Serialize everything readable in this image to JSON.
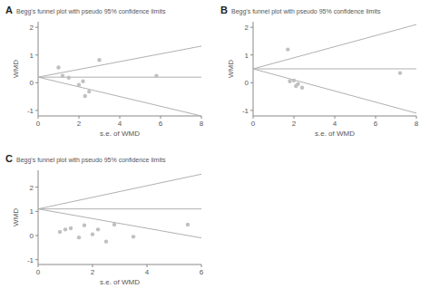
{
  "chart_data": [
    {
      "type": "scatter",
      "title": "Begg's funnel plot with pseudo 95% confidence limits",
      "annotations": [
        "A"
      ],
      "xlabel": "s.e. of WMD",
      "ylabel": "WMD",
      "xlim": [
        0,
        8
      ],
      "ylim": [
        -1.2,
        2.2
      ],
      "xticks": [
        0,
        2,
        4,
        6,
        8
      ],
      "yticks": [
        -1,
        0,
        1,
        2
      ],
      "series": [
        {
          "type": "line",
          "color": "#b0b0b0",
          "x": [
            0,
            8
          ],
          "values": [
            0.2,
            1.32
          ]
        },
        {
          "type": "line",
          "color": "#b0b0b0",
          "x": [
            0,
            8
          ],
          "values": [
            0.2,
            -1.2
          ]
        },
        {
          "type": "line",
          "color": "#b0b0b0",
          "x": [
            0,
            8
          ],
          "values": [
            0.2,
            0.2
          ]
        },
        {
          "type": "scatter",
          "color": "#c0c0c0",
          "x": [
            1.0,
            1.2,
            1.5,
            2.0,
            2.2,
            2.5,
            2.3,
            3.0,
            5.8
          ],
          "values": [
            0.55,
            0.25,
            0.18,
            -0.08,
            0.05,
            -0.32,
            -0.48,
            0.82,
            0.25
          ]
        }
      ]
    },
    {
      "type": "scatter",
      "title": "Begg's funnel plot with pseudo 95% confidence limits",
      "annotations": [
        "B"
      ],
      "xlabel": "s.e. of WMD",
      "ylabel": "WMD",
      "xlim": [
        0,
        8
      ],
      "ylim": [
        -1.2,
        2.2
      ],
      "xticks": [
        0,
        2,
        4,
        6,
        8
      ],
      "yticks": [
        -1,
        0,
        1,
        2
      ],
      "series": [
        {
          "type": "line",
          "color": "#b0b0b0",
          "x": [
            0,
            8
          ],
          "values": [
            0.5,
            2.1
          ]
        },
        {
          "type": "line",
          "color": "#b0b0b0",
          "x": [
            0,
            8
          ],
          "values": [
            0.5,
            -1.1
          ]
        },
        {
          "type": "line",
          "color": "#b0b0b0",
          "x": [
            0,
            8
          ],
          "values": [
            0.5,
            0.5
          ]
        },
        {
          "type": "scatter",
          "color": "#c0c0c0",
          "x": [
            1.7,
            1.8,
            2.0,
            2.1,
            2.2,
            2.4,
            7.2
          ],
          "values": [
            1.2,
            0.05,
            0.08,
            -0.12,
            -0.05,
            -0.18,
            0.35
          ]
        }
      ]
    },
    {
      "type": "scatter",
      "title": "Begg's funnel plot with pseudo 95% confidence limits",
      "annotations": [
        "C"
      ],
      "xlabel": "s.e. of WMD",
      "ylabel": "WMD",
      "xlim": [
        0,
        6
      ],
      "ylim": [
        -1.2,
        2.7
      ],
      "xticks": [
        0,
        2,
        4,
        6
      ],
      "yticks": [
        -1,
        0,
        1,
        2
      ],
      "series": [
        {
          "type": "line",
          "color": "#b0b0b0",
          "x": [
            0,
            6
          ],
          "values": [
            1.1,
            2.54
          ]
        },
        {
          "type": "line",
          "color": "#b0b0b0",
          "x": [
            0,
            6
          ],
          "values": [
            1.1,
            -0.1
          ]
        },
        {
          "type": "line",
          "color": "#b0b0b0",
          "x": [
            0,
            6
          ],
          "values": [
            1.1,
            1.1
          ]
        },
        {
          "type": "scatter",
          "color": "#c0c0c0",
          "x": [
            0.8,
            1.0,
            1.2,
            1.5,
            1.7,
            2.0,
            2.2,
            2.5,
            2.8,
            3.5,
            5.5
          ],
          "values": [
            0.15,
            0.25,
            0.3,
            -0.08,
            0.42,
            0.05,
            0.25,
            -0.25,
            0.45,
            -0.05,
            0.45
          ]
        }
      ]
    }
  ]
}
